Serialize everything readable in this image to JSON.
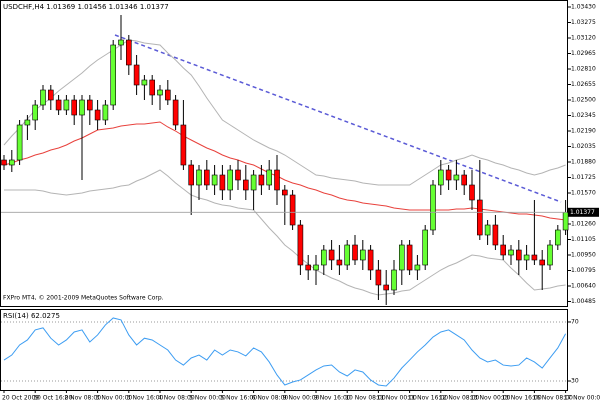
{
  "chart_data": [
    {
      "type": "candlestick",
      "title": "USDCHF,H4  1.01369 1.01456 1.01346 1.01377",
      "annotation": "FXPro MT4, © 2001-2009 MetaQuotes Software Corp.",
      "categories": [
        "20 Oct 2009",
        null,
        null,
        null,
        "30 Oct 16:00",
        null,
        null,
        null,
        "2 Nov 08:00",
        null,
        null,
        null,
        "3 Nov 00:00",
        null,
        null,
        null,
        "3 Nov 16:00",
        null,
        null,
        null,
        "4 Nov 08:00",
        null,
        null,
        null,
        "5 Nov 00:00",
        null,
        null,
        null,
        "5 Nov 16:00",
        null,
        null,
        null,
        "6 Nov 08:00",
        null,
        null,
        null,
        "9 Nov 00:00",
        null,
        null,
        null,
        "9 Nov 16:00",
        null,
        null,
        null,
        "10 Nov 08:00",
        null,
        null,
        null,
        "11 Nov 00:00",
        null,
        null,
        null,
        "11 Nov 16:00",
        null,
        null,
        null,
        "12 Nov 08:00",
        null,
        null,
        null,
        "13 Nov 00:00",
        null,
        null,
        null,
        "13 Nov 16:00",
        null,
        null,
        null,
        "16 Nov 08:00",
        null,
        null,
        null,
        "17 Nov 00:00"
      ],
      "open": [
        1.019,
        1.0185,
        1.019,
        1.0225,
        1.023,
        1.0245,
        1.026,
        1.025,
        1.024,
        1.025,
        1.0235,
        1.025,
        1.024,
        1.023,
        1.0245,
        1.0305,
        1.031,
        1.0285,
        1.0265,
        1.027,
        1.0255,
        1.026,
        1.025,
        1.0225,
        1.0185,
        1.0165,
        1.018,
        1.0165,
        1.0175,
        1.016,
        1.018,
        1.017,
        1.016,
        1.0175,
        1.0165,
        1.018,
        1.016,
        1.0155,
        1.0125,
        1.0085,
        1.008,
        1.0085,
        1.01,
        1.009,
        1.0085,
        1.0105,
        1.009,
        1.01,
        1.008,
        1.0065,
        1.006,
        1.008,
        1.0105,
        1.008,
        1.0085,
        1.012,
        1.0165,
        1.018,
        1.017,
        1.0175,
        1.0165,
        1.015,
        1.0115,
        1.0125,
        1.0105,
        1.0095,
        1.01,
        1.009,
        1.0095,
        1.009,
        1.0085,
        1.0105,
        1.012
      ],
      "high": [
        1.0195,
        1.02,
        1.023,
        1.0235,
        1.025,
        1.0265,
        1.0265,
        1.0255,
        1.0255,
        1.0255,
        1.0255,
        1.0255,
        1.025,
        1.025,
        1.031,
        1.0335,
        1.0315,
        1.0295,
        1.0275,
        1.0275,
        1.0265,
        1.027,
        1.0255,
        1.025,
        1.019,
        1.0185,
        1.019,
        1.0185,
        1.0185,
        1.0185,
        1.019,
        1.0185,
        1.018,
        1.0185,
        1.019,
        1.0195,
        1.0165,
        1.016,
        1.013,
        1.0095,
        1.0095,
        1.0105,
        1.011,
        1.0105,
        1.011,
        1.0115,
        1.011,
        1.0105,
        1.009,
        1.008,
        1.009,
        1.011,
        1.011,
        1.0095,
        1.0125,
        1.017,
        1.019,
        1.0185,
        1.019,
        1.018,
        1.018,
        1.019,
        1.013,
        1.0135,
        1.0115,
        1.0105,
        1.011,
        1.0105,
        1.015,
        1.01,
        1.011,
        1.0125,
        1.015
      ],
      "low": [
        1.018,
        1.0178,
        1.0185,
        1.021,
        1.022,
        1.024,
        1.024,
        1.0235,
        1.0235,
        1.0225,
        1.017,
        1.0225,
        1.022,
        1.0225,
        1.024,
        1.029,
        1.0275,
        1.0255,
        1.025,
        1.0245,
        1.024,
        1.0245,
        1.022,
        1.018,
        1.0135,
        1.015,
        1.016,
        1.0155,
        1.015,
        1.015,
        1.016,
        1.015,
        1.014,
        1.0155,
        1.016,
        1.0145,
        1.0125,
        1.012,
        1.0075,
        1.007,
        1.0065,
        1.0075,
        1.008,
        1.0075,
        1.008,
        1.0085,
        1.008,
        1.007,
        1.005,
        1.0045,
        1.0055,
        1.0065,
        1.0075,
        1.007,
        1.008,
        1.0115,
        1.0155,
        1.016,
        1.016,
        1.0155,
        1.014,
        1.011,
        1.0105,
        1.01,
        1.009,
        1.0085,
        1.0075,
        1.008,
        1.0085,
        1.006,
        1.008,
        1.01,
        1.0115
      ],
      "close": [
        1.0185,
        1.019,
        1.0225,
        1.023,
        1.0245,
        1.026,
        1.025,
        1.024,
        1.025,
        1.0235,
        1.025,
        1.024,
        1.023,
        1.0245,
        1.0305,
        1.031,
        1.0285,
        1.0265,
        1.027,
        1.0255,
        1.026,
        1.025,
        1.0225,
        1.0185,
        1.0165,
        1.018,
        1.0165,
        1.0175,
        1.016,
        1.018,
        1.017,
        1.016,
        1.0175,
        1.0165,
        1.018,
        1.016,
        1.0155,
        1.0125,
        1.0085,
        1.008,
        1.0085,
        1.01,
        1.009,
        1.0085,
        1.0105,
        1.009,
        1.01,
        1.008,
        1.0065,
        1.006,
        1.008,
        1.0105,
        1.008,
        1.0085,
        1.012,
        1.0165,
        1.018,
        1.017,
        1.0175,
        1.0165,
        1.015,
        1.0115,
        1.0125,
        1.0105,
        1.0095,
        1.01,
        1.009,
        1.0095,
        1.009,
        1.0085,
        1.0105,
        1.012,
        1.01377
      ],
      "up_color": "#66ff33",
      "down_color": "#ff0000",
      "lines": [
        {
          "color": "#e8413c",
          "values": [
            1.0185,
            1.0187,
            1.019,
            1.0192,
            1.0195,
            1.0197,
            1.02,
            1.0202,
            1.0205,
            1.0209,
            1.0212,
            1.0216,
            1.022,
            1.0221,
            1.0222,
            1.0224,
            1.0225,
            1.0226,
            1.0226,
            1.0227,
            1.0228,
            1.0223,
            1.0219,
            1.0214,
            1.021,
            1.0206,
            1.0202,
            1.0199,
            1.0195,
            1.0192,
            1.019,
            1.0187,
            1.0185,
            1.0181,
            1.0177,
            1.0174,
            1.017,
            1.0167,
            1.0165,
            1.0162,
            1.016,
            1.0157,
            1.0155,
            1.0152,
            1.015,
            1.0149,
            1.0147,
            1.0146,
            1.0145,
            1.0144,
            1.0142,
            1.0141,
            1.014,
            1.014,
            1.014,
            1.014,
            1.014,
            1.014,
            1.0141,
            1.0141,
            1.0142,
            1.0141,
            1.014,
            1.0139,
            1.0138,
            1.0137,
            1.0136,
            1.0136,
            1.0135,
            1.0134,
            1.0132,
            1.0131,
            1.013
          ]
        },
        {
          "color": "#b4b4b4",
          "values": [
            1.0205,
            1.0214,
            1.0222,
            1.0231,
            1.024,
            1.0246,
            1.0252,
            1.0259,
            1.0265,
            1.0271,
            1.0277,
            1.0284,
            1.029,
            1.0295,
            1.03,
            1.0305,
            1.031,
            1.0309,
            1.0307,
            1.0306,
            1.0305,
            1.0297,
            1.029,
            1.0282,
            1.0275,
            1.0264,
            1.0252,
            1.0241,
            1.023,
            1.0225,
            1.022,
            1.0215,
            1.021,
            1.0206,
            1.0202,
            1.0199,
            1.0195,
            1.019,
            1.0185,
            1.018,
            1.0175,
            1.0174,
            1.0172,
            1.0171,
            1.017,
            1.0169,
            1.0167,
            1.0166,
            1.0165,
            1.0165,
            1.0165,
            1.0165,
            1.0165,
            1.017,
            1.0175,
            1.018,
            1.0185,
            1.0187,
            1.019,
            1.0192,
            1.0195,
            1.0192,
            1.019,
            1.0187,
            1.0185,
            1.0182,
            1.018,
            1.0177,
            1.0175,
            1.0177,
            1.018,
            1.0182,
            1.0185
          ]
        },
        {
          "color": "#b4b4b4",
          "values": [
            1.016,
            1.016,
            1.016,
            1.016,
            1.016,
            1.0159,
            1.0157,
            1.0156,
            1.0155,
            1.0156,
            1.0157,
            1.0159,
            1.016,
            1.0161,
            1.0162,
            1.0164,
            1.0165,
            1.0169,
            1.0172,
            1.0176,
            1.018,
            1.0174,
            1.0167,
            1.0161,
            1.0155,
            1.0152,
            1.015,
            1.0147,
            1.0145,
            1.0144,
            1.0142,
            1.0141,
            1.014,
            1.0131,
            1.0122,
            1.0114,
            1.0105,
            1.0099,
            1.0092,
            1.0086,
            1.008,
            1.0076,
            1.0072,
            1.0069,
            1.0065,
            1.0062,
            1.006,
            1.0057,
            1.0055,
            1.0056,
            1.0057,
            1.0059,
            1.006,
            1.0065,
            1.007,
            1.0075,
            1.008,
            1.0084,
            1.0087,
            1.0091,
            1.0095,
            1.0094,
            1.0092,
            1.0091,
            1.009,
            1.0082,
            1.0075,
            1.0067,
            1.006,
            1.0061,
            1.0062,
            1.0064,
            1.0065
          ]
        }
      ],
      "last_price": 1.01377,
      "ylim": [
        1.0042,
        1.035
      ],
      "yticks": [
        {
          "value": 1.0343,
          "label": "1.03430"
        },
        1.03275,
        {
          "value": 1.0312,
          "label": "1.03120"
        },
        1.02965,
        {
          "value": 1.0281,
          "label": "1.02810"
        },
        1.02655,
        {
          "value": 1.025,
          "label": "1.02500"
        },
        1.02345,
        {
          "value": 1.0219,
          "label": "1.02190"
        },
        1.02035,
        {
          "value": 1.0188,
          "label": "1.01880"
        },
        1.01725,
        {
          "value": 1.0157,
          "label": "1.01570"
        },
        {
          "value": 1.0126,
          "label": "1.01260"
        },
        1.01105,
        {
          "value": 1.0095,
          "label": "1.00950"
        },
        1.00795,
        {
          "value": 1.0064,
          "label": "1.00640"
        },
        1.00485
      ]
    },
    {
      "type": "line",
      "title": "RSI(14) 62.0275",
      "color": "#3d9df2",
      "values": [
        44.2,
        47.6,
        54.4,
        57.8,
        64.6,
        66,
        59,
        54.4,
        57.8,
        63.2,
        64.6,
        56.4,
        61.2,
        68,
        72.7,
        71.4,
        61.2,
        54.4,
        59,
        57.8,
        54.4,
        51,
        44.2,
        40.8,
        45.6,
        47.6,
        44.2,
        51,
        47.6,
        51,
        49.7,
        47,
        52.4,
        49.7,
        42.9,
        34.1,
        27.3,
        29.3,
        30.7,
        34.1,
        37.5,
        40.2,
        40.8,
        36.1,
        33.4,
        37.5,
        36.1,
        30.7,
        27.3,
        26.6,
        32,
        38.8,
        44.2,
        49.7,
        54.4,
        59.8,
        63.2,
        64.6,
        61.2,
        57.8,
        51,
        45.6,
        42.9,
        44.2,
        40.8,
        40.2,
        40.8,
        45.6,
        42.9,
        38.8,
        45.6,
        52.4,
        62.0275
      ],
      "ylim": [
        23.9,
        75.4
      ],
      "yticks": [
        30,
        70
      ]
    }
  ]
}
